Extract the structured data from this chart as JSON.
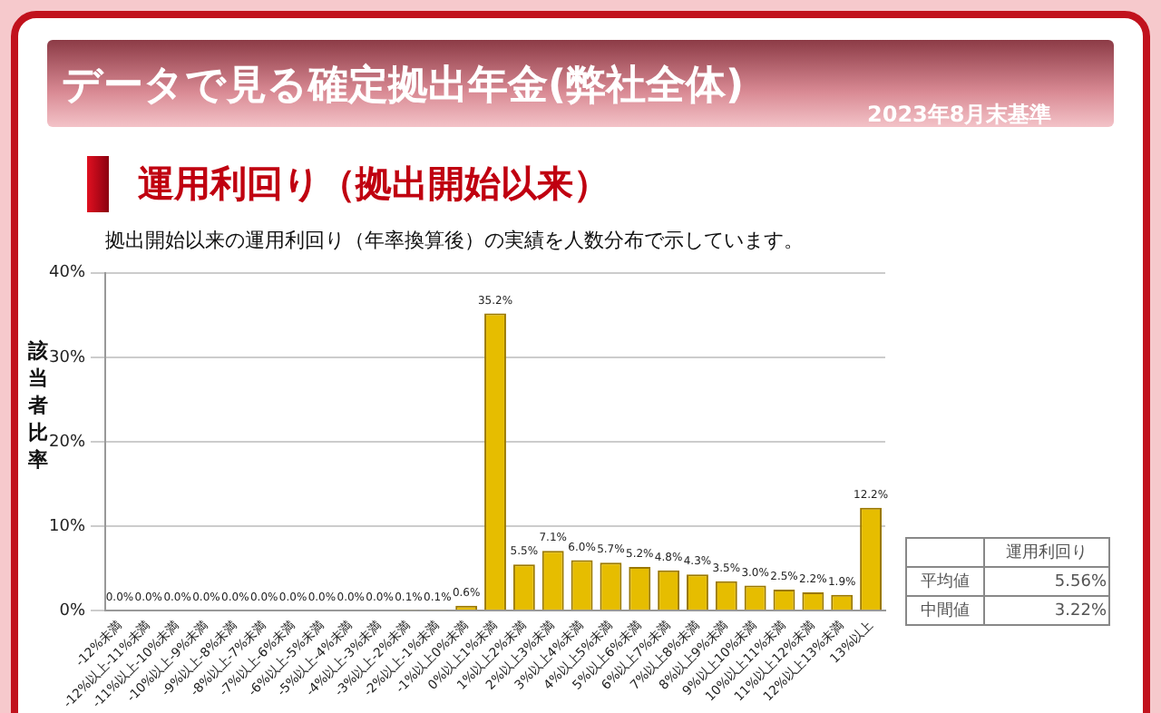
{
  "chart_data": {
    "type": "bar",
    "title": "データで見る確定拠出年金(弊社全体)",
    "subtitle": "運用利回り（拠出開始以来）",
    "ylabel": "該当者比率",
    "annotations": [
      "2023年8月末基準",
      "拠出開始以来の運用利回り（年率換算後）の実績を人数分布で示しています。",
      "運用利回り",
      "平均値",
      "5.56%",
      "中間値",
      "3.22%"
    ],
    "categories": [
      "-12%未満",
      "-12%以上-11%未満",
      "-11%以上-10%未満",
      "-10%以上-9%未満",
      "-9%以上-8%未満",
      "-8%以上-7%未満",
      "-7%以上-6%未満",
      "-6%以上-5%未満",
      "-5%以上-4%未満",
      "-4%以上-3%未満",
      "-3%以上-2%未満",
      "-2%以上-1%未満",
      "-1%以上0%未満",
      "0%以上1%未満",
      "1%以上2%未満",
      "2%以上3%未満",
      "3%以上4%未満",
      "4%以上5%未満",
      "5%以上6%未満",
      "6%以上7%未満",
      "7%以上8%未満",
      "8%以上9%未満",
      "9%以上10%未満",
      "10%以上11%未満",
      "11%以上12%未満",
      "12%以上13%未満",
      "13%以上"
    ],
    "values": [
      0.0,
      0.0,
      0.0,
      0.0,
      0.0,
      0.0,
      0.0,
      0.0,
      0.0,
      0.0,
      0.1,
      0.1,
      0.6,
      35.2,
      5.5,
      7.1,
      6.0,
      5.7,
      5.2,
      4.8,
      4.3,
      3.5,
      3.0,
      2.5,
      2.2,
      1.9,
      12.2
    ],
    "value_labels": [
      "0.0%",
      "0.0%",
      "0.0%",
      "0.0%",
      "0.0%",
      "0.0%",
      "0.0%",
      "0.0%",
      "0.0%",
      "0.0%",
      "0.1%",
      "0.1%",
      "0.6%",
      "35.2%",
      "5.5%",
      "7.1%",
      "6.0%",
      "5.7%",
      "5.2%",
      "4.8%",
      "4.3%",
      "3.5%",
      "3.0%",
      "2.5%",
      "2.2%",
      "1.9%",
      "12.2%"
    ],
    "color": "#e6bd00",
    "ylim": [
      0,
      40
    ],
    "yticks": [
      {
        "value": 0,
        "label": "0%"
      },
      {
        "value": 10,
        "label": "10%"
      },
      {
        "value": 20,
        "label": "20%"
      },
      {
        "value": 30,
        "label": "30%"
      },
      {
        "value": 40,
        "label": "40%"
      }
    ],
    "grid": "y",
    "legend": false
  }
}
